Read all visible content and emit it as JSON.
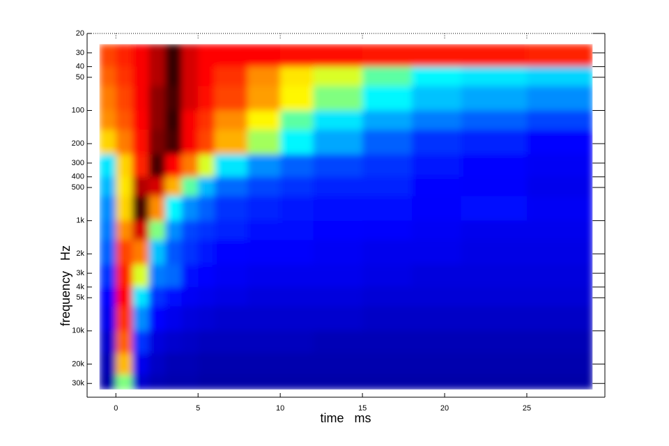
{
  "chart_data": {
    "type": "heatmap",
    "xlabel": "time   ms",
    "ylabel": "frequency   Hz",
    "xlim": [
      -1.75,
      29.75
    ],
    "ylim": [
      20,
      40000
    ],
    "y_log": true,
    "y_reversed": true,
    "xticks": [
      0,
      5,
      10,
      15,
      20,
      25
    ],
    "yticks": [
      20,
      30,
      40,
      50,
      100,
      200,
      300,
      400,
      500,
      {
        "value": 1000,
        "label": "1k"
      },
      {
        "value": 2000,
        "label": "2k"
      },
      {
        "value": 3000,
        "label": "3k"
      },
      {
        "value": 4000,
        "label": "4k"
      },
      {
        "value": 5000,
        "label": "5k"
      },
      {
        "value": 10000,
        "label": "10k"
      },
      {
        "value": 20000,
        "label": "20k"
      },
      {
        "value": 30000,
        "label": "30k"
      }
    ],
    "colorscale": [
      "#00008f",
      "#0000ff",
      "#0080ff",
      "#00ffff",
      "#ffff00",
      "#ff8000",
      "#ff0000",
      "#000000"
    ],
    "x_edges": [
      -1,
      0,
      1,
      2,
      3,
      4,
      5,
      6,
      8,
      10,
      12,
      15,
      18,
      21,
      25,
      29
    ],
    "y_edges": [
      25,
      40,
      60,
      100,
      150,
      250,
      400,
      600,
      1000,
      1500,
      2500,
      4000,
      6000,
      10000,
      16000,
      25000,
      34000
    ],
    "z": [
      [
        0.78,
        0.82,
        0.86,
        0.9,
        0.97,
        0.88,
        0.85,
        0.85,
        0.85,
        0.84,
        0.84,
        0.83,
        0.83,
        0.83,
        0.82
      ],
      [
        0.75,
        0.8,
        0.86,
        0.9,
        0.97,
        0.88,
        0.85,
        0.8,
        0.7,
        0.6,
        0.55,
        0.48,
        0.42,
        0.4,
        0.38
      ],
      [
        0.72,
        0.78,
        0.86,
        0.92,
        0.96,
        0.88,
        0.84,
        0.78,
        0.68,
        0.58,
        0.5,
        0.42,
        0.36,
        0.33,
        0.3
      ],
      [
        0.7,
        0.76,
        0.85,
        0.92,
        0.97,
        0.86,
        0.8,
        0.7,
        0.58,
        0.48,
        0.4,
        0.33,
        0.28,
        0.25,
        0.22
      ],
      [
        0.62,
        0.72,
        0.84,
        0.93,
        0.96,
        0.86,
        0.78,
        0.66,
        0.52,
        0.42,
        0.33,
        0.25,
        0.2,
        0.18,
        0.15
      ],
      [
        0.4,
        0.62,
        0.82,
        0.96,
        0.85,
        0.72,
        0.55,
        0.4,
        0.3,
        0.25,
        0.22,
        0.2,
        0.17,
        0.15,
        0.13
      ],
      [
        0.35,
        0.6,
        0.9,
        0.88,
        0.66,
        0.48,
        0.35,
        0.26,
        0.22,
        0.2,
        0.18,
        0.18,
        0.15,
        0.14,
        0.12
      ],
      [
        0.3,
        0.62,
        0.96,
        0.7,
        0.42,
        0.3,
        0.25,
        0.2,
        0.18,
        0.17,
        0.16,
        0.16,
        0.14,
        0.16,
        0.13
      ],
      [
        0.28,
        0.7,
        0.88,
        0.5,
        0.3,
        0.22,
        0.2,
        0.18,
        0.16,
        0.16,
        0.15,
        0.14,
        0.13,
        0.12,
        0.12
      ],
      [
        0.25,
        0.78,
        0.72,
        0.36,
        0.24,
        0.2,
        0.17,
        0.15,
        0.14,
        0.14,
        0.13,
        0.12,
        0.12,
        0.11,
        0.11
      ],
      [
        0.2,
        0.82,
        0.55,
        0.28,
        0.26,
        0.16,
        0.15,
        0.13,
        0.12,
        0.12,
        0.12,
        0.11,
        0.1,
        0.1,
        0.1
      ],
      [
        0.15,
        0.85,
        0.4,
        0.2,
        0.16,
        0.13,
        0.12,
        0.11,
        0.1,
        0.1,
        0.1,
        0.09,
        0.09,
        0.09,
        0.09
      ],
      [
        0.12,
        0.8,
        0.3,
        0.15,
        0.12,
        0.1,
        0.09,
        0.08,
        0.08,
        0.08,
        0.08,
        0.07,
        0.07,
        0.07,
        0.07
      ],
      [
        0.08,
        0.75,
        0.2,
        0.1,
        0.08,
        0.07,
        0.06,
        0.06,
        0.06,
        0.06,
        0.05,
        0.05,
        0.05,
        0.05,
        0.05
      ],
      [
        0.05,
        0.65,
        0.12,
        0.07,
        0.05,
        0.05,
        0.04,
        0.04,
        0.04,
        0.04,
        0.04,
        0.04,
        0.04,
        0.04,
        0.04
      ],
      [
        0.03,
        0.5,
        0.08,
        0.05,
        0.04,
        0.04,
        0.03,
        0.03,
        0.03,
        0.03,
        0.03,
        0.03,
        0.03,
        0.03,
        0.03
      ]
    ]
  }
}
